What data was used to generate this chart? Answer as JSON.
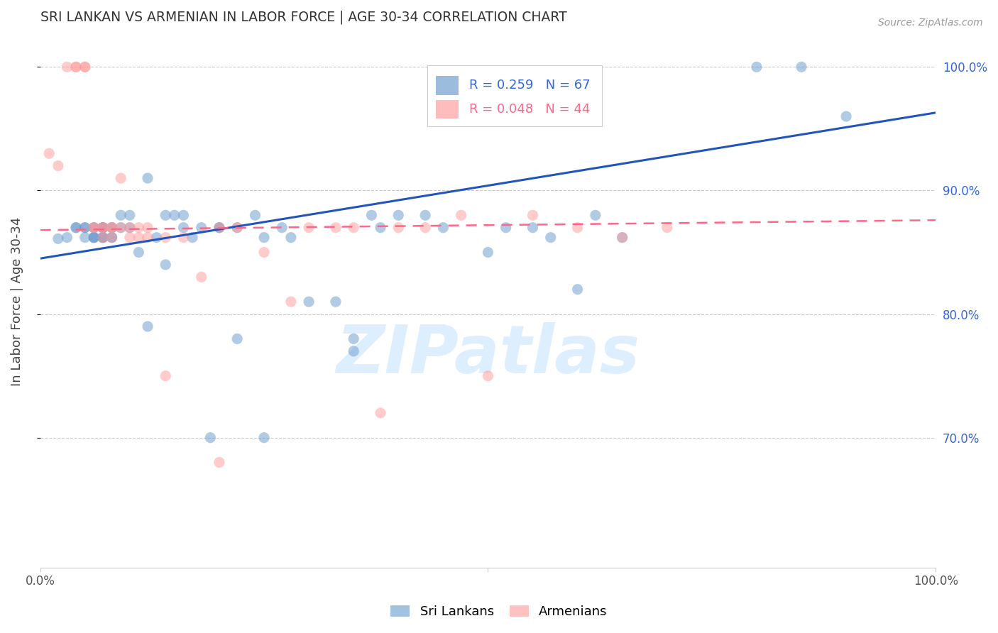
{
  "title": "SRI LANKAN VS ARMENIAN IN LABOR FORCE | AGE 30-34 CORRELATION CHART",
  "source": "Source: ZipAtlas.com",
  "ylabel": "In Labor Force | Age 30-34",
  "legend_blue_r": "R = 0.259",
  "legend_blue_n": "N = 67",
  "legend_pink_r": "R = 0.048",
  "legend_pink_n": "N = 44",
  "legend_label_blue": "Sri Lankans",
  "legend_label_pink": "Armenians",
  "blue_color": "#6699CC",
  "pink_color": "#FF9999",
  "trend_blue_color": "#2255BB",
  "trend_pink_color": "#FF6688",
  "background_color": "#FFFFFF",
  "grid_color": "#BBBBBB",
  "title_color": "#333333",
  "right_axis_color": "#3366DD",
  "watermark_color": "#DDEEFF",
  "watermark_text": "ZIPatlas",
  "xlim": [
    0.0,
    1.0
  ],
  "ylim": [
    0.595,
    1.025
  ],
  "blue_scatter_x": [
    0.02,
    0.03,
    0.04,
    0.04,
    0.05,
    0.05,
    0.05,
    0.06,
    0.06,
    0.06,
    0.06,
    0.06,
    0.07,
    0.07,
    0.07,
    0.07,
    0.07,
    0.07,
    0.07,
    0.08,
    0.08,
    0.08,
    0.08,
    0.09,
    0.09,
    0.1,
    0.1,
    0.11,
    0.12,
    0.12,
    0.13,
    0.14,
    0.14,
    0.15,
    0.16,
    0.16,
    0.17,
    0.18,
    0.19,
    0.2,
    0.2,
    0.22,
    0.24,
    0.25,
    0.27,
    0.28,
    0.3,
    0.33,
    0.35,
    0.37,
    0.38,
    0.4,
    0.43,
    0.5,
    0.52,
    0.55,
    0.57,
    0.6,
    0.62,
    0.65,
    0.8,
    0.85,
    0.9,
    0.22,
    0.25,
    0.35,
    0.45
  ],
  "blue_scatter_y": [
    0.861,
    0.862,
    0.87,
    0.87,
    0.87,
    0.87,
    0.862,
    0.862,
    0.862,
    0.862,
    0.87,
    0.87,
    0.862,
    0.862,
    0.862,
    0.87,
    0.87,
    0.87,
    0.87,
    0.87,
    0.87,
    0.862,
    0.862,
    0.87,
    0.88,
    0.87,
    0.88,
    0.85,
    0.79,
    0.91,
    0.862,
    0.88,
    0.84,
    0.88,
    0.88,
    0.87,
    0.862,
    0.87,
    0.7,
    0.87,
    0.87,
    0.87,
    0.88,
    0.862,
    0.87,
    0.862,
    0.81,
    0.81,
    0.78,
    0.88,
    0.87,
    0.88,
    0.88,
    0.85,
    0.87,
    0.87,
    0.862,
    0.82,
    0.88,
    0.862,
    1.0,
    1.0,
    0.96,
    0.78,
    0.7,
    0.77,
    0.87
  ],
  "pink_scatter_x": [
    0.01,
    0.02,
    0.03,
    0.04,
    0.04,
    0.05,
    0.05,
    0.06,
    0.06,
    0.07,
    0.07,
    0.07,
    0.08,
    0.08,
    0.08,
    0.09,
    0.09,
    0.1,
    0.1,
    0.11,
    0.11,
    0.12,
    0.12,
    0.14,
    0.16,
    0.18,
    0.2,
    0.22,
    0.25,
    0.28,
    0.3,
    0.33,
    0.35,
    0.38,
    0.4,
    0.43,
    0.47,
    0.5,
    0.55,
    0.6,
    0.65,
    0.7,
    0.14,
    0.2
  ],
  "pink_scatter_y": [
    0.93,
    0.92,
    1.0,
    1.0,
    1.0,
    1.0,
    1.0,
    0.87,
    0.87,
    0.87,
    0.87,
    0.862,
    0.87,
    0.87,
    0.862,
    0.91,
    0.87,
    0.87,
    0.862,
    0.862,
    0.87,
    0.87,
    0.862,
    0.75,
    0.862,
    0.83,
    0.87,
    0.87,
    0.85,
    0.81,
    0.87,
    0.87,
    0.87,
    0.72,
    0.87,
    0.87,
    0.88,
    0.75,
    0.88,
    0.87,
    0.862,
    0.87,
    0.862,
    0.68
  ],
  "blue_trend_y_start": 0.845,
  "blue_trend_y_end": 0.963,
  "pink_trend_y_start": 0.868,
  "pink_trend_y_end": 0.876
}
